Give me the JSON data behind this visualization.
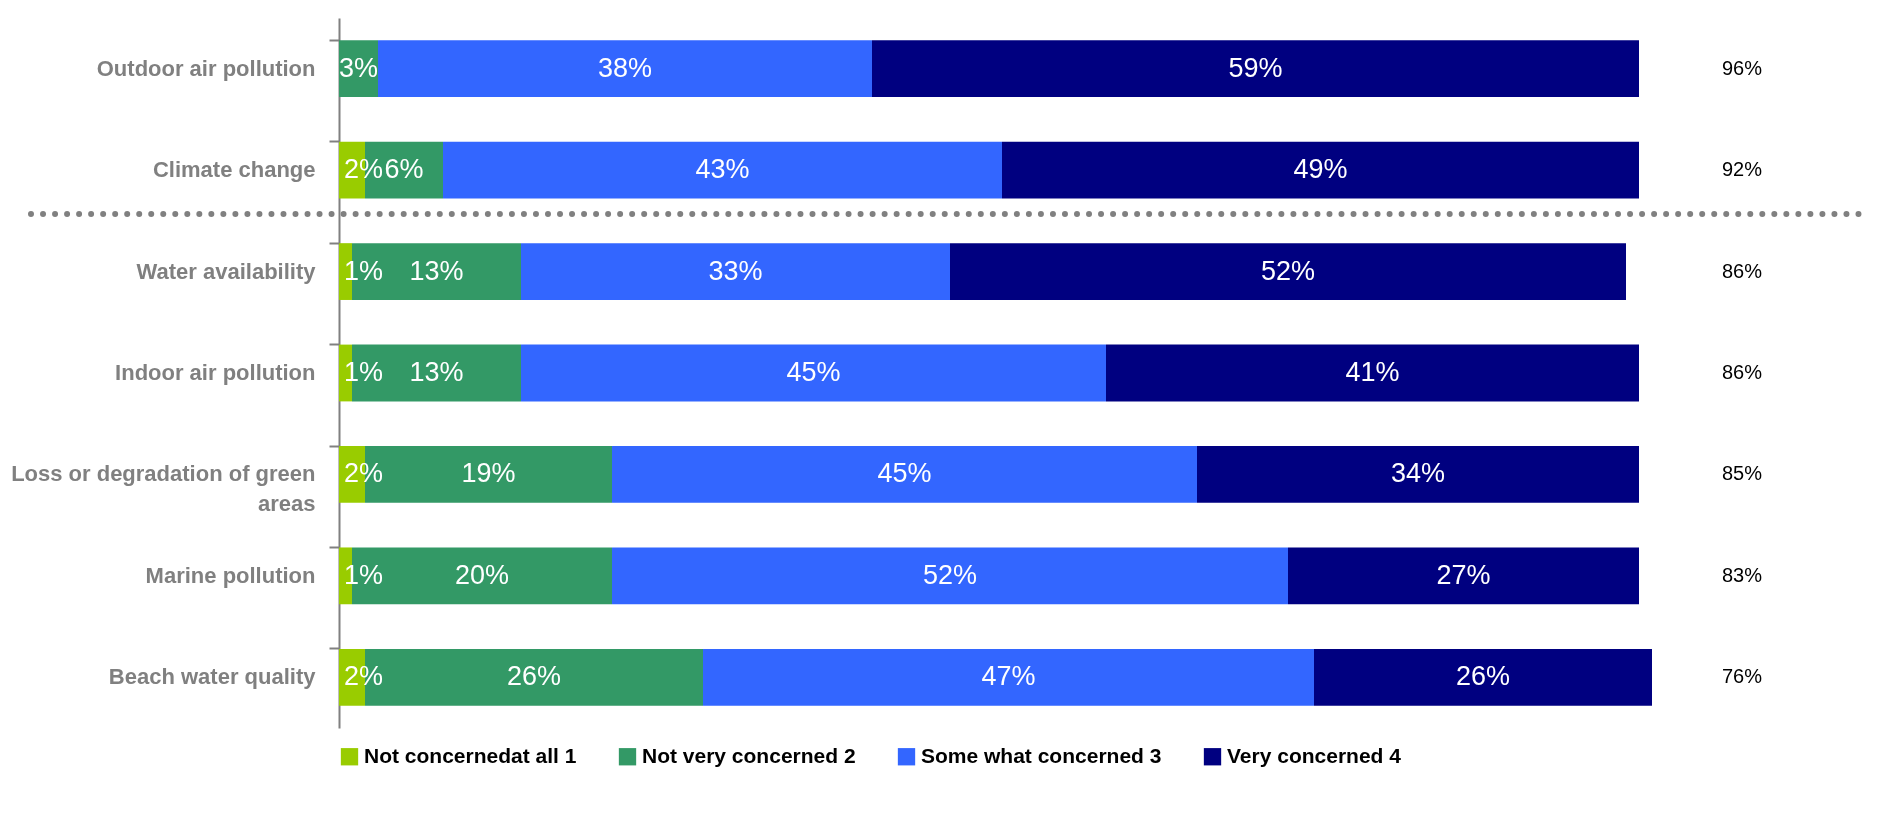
{
  "chart_data": {
    "type": "bar",
    "orientation": "horizontal",
    "stacked": true,
    "legend": "bottom",
    "tick_labels": "y",
    "categories": [
      "Outdoor air pollution",
      "Climate change",
      "Water availability",
      "Indoor air pollution",
      "Loss or degradation of green areas",
      "Marine pollution",
      "Beach water quality"
    ],
    "series": [
      {
        "name": "Not concernedat all 1",
        "color": "#99cc00",
        "values": [
          null,
          2,
          1,
          1,
          2,
          1,
          2
        ],
        "value_labels": [
          null,
          "2%",
          "1%",
          "1%",
          "2%",
          "1%",
          "2%"
        ]
      },
      {
        "name": "Not very concerned 2",
        "color": "#339966",
        "values": [
          3,
          6,
          13,
          13,
          19,
          20,
          26
        ],
        "value_labels": [
          "3%",
          "6%",
          "13%",
          "13%",
          "19%",
          "20%",
          "26%"
        ]
      },
      {
        "name": "Some what concerned 3",
        "color": "#3366ff",
        "values": [
          38,
          43,
          33,
          45,
          45,
          52,
          47
        ],
        "value_labels": [
          "38%",
          "43%",
          "33%",
          "45%",
          "45%",
          "52%",
          "47%"
        ]
      },
      {
        "name": "Very concerned 4",
        "color": "#000080",
        "values": [
          59,
          49,
          52,
          41,
          34,
          27,
          26
        ],
        "value_labels": [
          "59%",
          "49%",
          "52%",
          "41%",
          "34%",
          "27%",
          "26%"
        ]
      }
    ],
    "annotations": [
      "96%",
      "92%",
      "86%",
      "86%",
      "85%",
      "83%",
      "76%"
    ]
  }
}
